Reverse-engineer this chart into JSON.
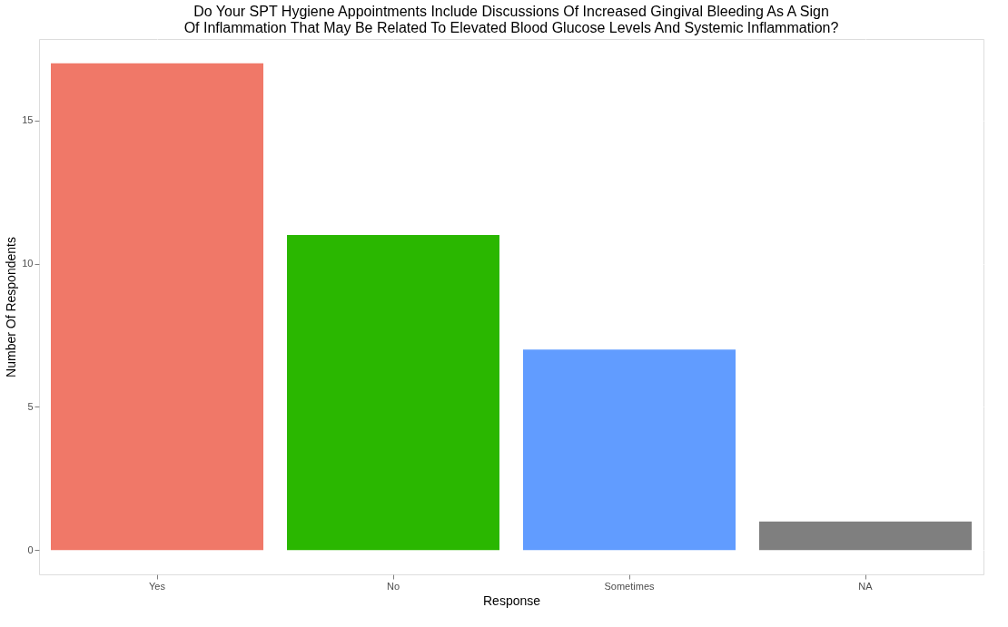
{
  "chart_data": {
    "type": "bar",
    "title": "Do Your SPT Hygiene Appointments Include Discussions Of Increased Gingival Bleeding As A Sign\nOf Inflammation That May Be Related To Elevated Blood Glucose Levels And Systemic Inflammation?",
    "xlabel": "Response",
    "ylabel": "Number Of Respondents",
    "categories": [
      "Yes",
      "No",
      "Sometimes",
      "NA"
    ],
    "values": [
      17,
      11,
      7,
      1
    ],
    "colors": [
      "#f07868",
      "#2ab700",
      "#619cff",
      "#7f7f7f"
    ],
    "ylim": [
      -0.85,
      17.85
    ],
    "yticks": [
      0,
      5,
      10,
      15
    ],
    "grid": true,
    "legend": false
  }
}
